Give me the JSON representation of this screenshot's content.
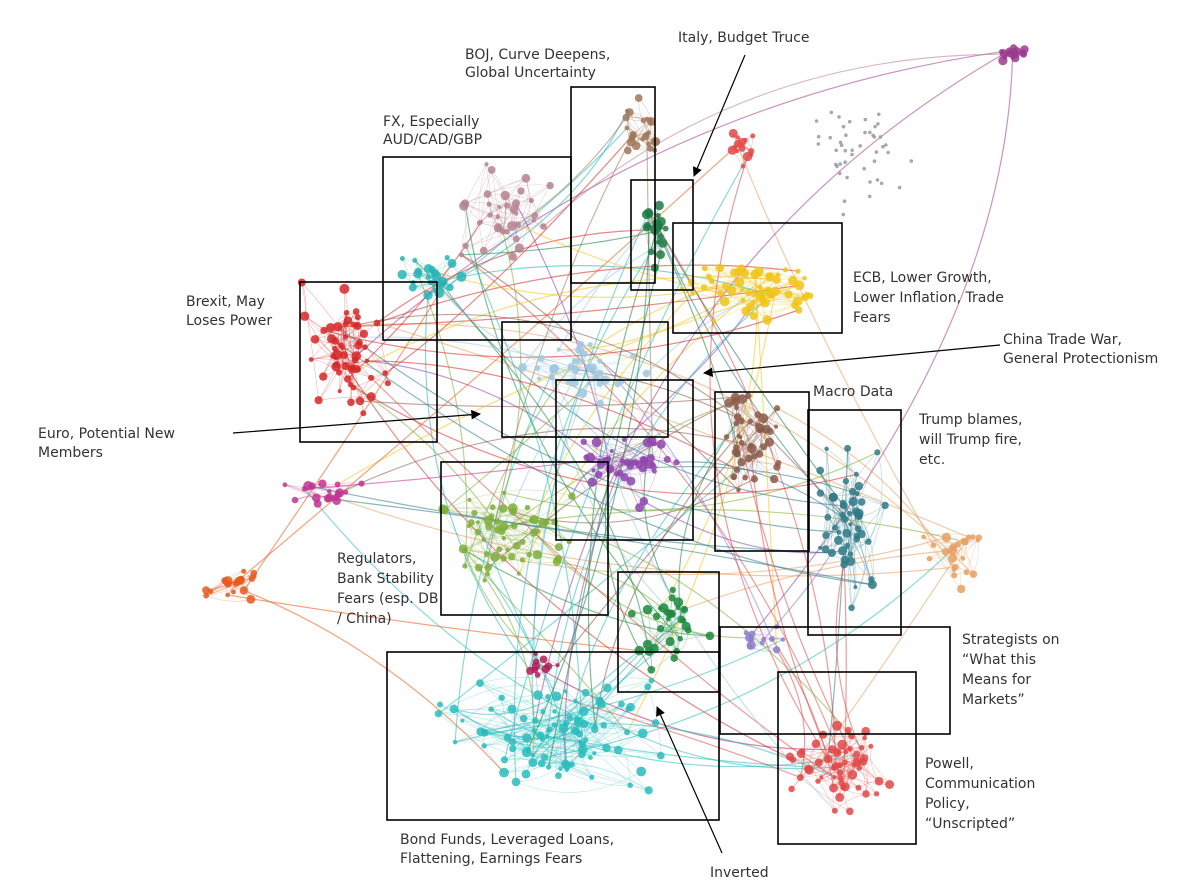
{
  "annotations": [
    {
      "lines": [
        "BOJ, Curve Deepens,",
        "Global Uncertainty"
      ]
    },
    {
      "lines": [
        "Italy, Budget Truce"
      ]
    },
    {
      "lines": [
        "FX, Especially",
        "AUD/CAD/GBP"
      ]
    },
    {
      "lines": [
        "Brexit, May",
        "Loses Power"
      ]
    },
    {
      "lines": [
        "ECB, Lower Growth,",
        "Lower Inflation, Trade",
        "Fears"
      ]
    },
    {
      "lines": [
        "China Trade War,",
        "General Protectionism"
      ]
    },
    {
      "lines": [
        "Macro Data"
      ]
    },
    {
      "lines": [
        "Euro, Potential New",
        "Members"
      ]
    },
    {
      "lines": [
        "Trump blames,",
        "will Trump fire,",
        "etc."
      ]
    },
    {
      "lines": [
        "Regulators,",
        "Bank Stability",
        "Fears (esp. DB",
        "/ China)"
      ]
    },
    {
      "lines": [
        "Strategists on",
        "“What this",
        "Means for",
        "Markets”"
      ]
    },
    {
      "lines": [
        "Powell,",
        "Communication",
        "Policy,",
        "“Unscripted”"
      ]
    },
    {
      "lines": [
        "Bond Funds, Leveraged Loans,",
        "Flattening, Earnings Fears"
      ]
    },
    {
      "lines": [
        "Inverted"
      ]
    }
  ]
}
